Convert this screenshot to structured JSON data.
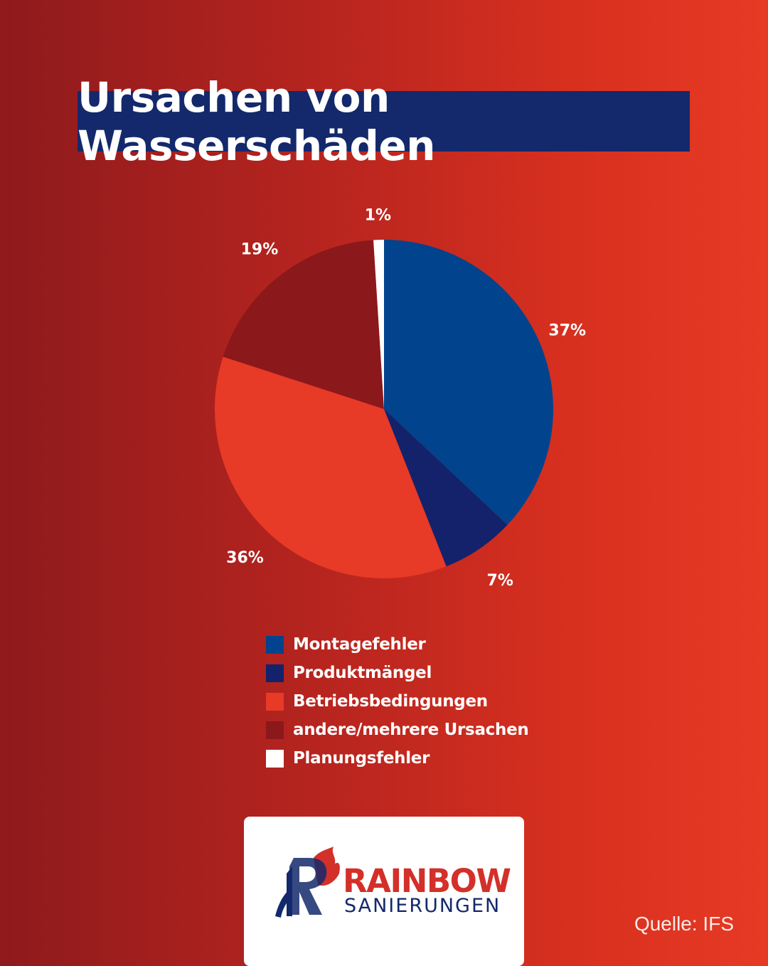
{
  "title": "Ursachen von Wasserschäden",
  "chart_data": {
    "type": "pie",
    "categories": [
      "Montagefehler",
      "Produktmängel",
      "Betriebsbedingungen",
      "andere/mehrere Ursachen",
      "Planungsfehler"
    ],
    "values": [
      37,
      7,
      36,
      19,
      1
    ],
    "labels": [
      "37%",
      "7%",
      "36%",
      "19%",
      "1%"
    ],
    "colors": [
      "#02438d",
      "#13226a",
      "#e73a27",
      "#8b181b",
      "#ffffff"
    ],
    "legend_position": "bottom",
    "start": "12 o'clock, clockwise"
  },
  "logo": {
    "word1": "RAINBOW",
    "word2": "SANIERUNGEN",
    "letter": "R"
  },
  "source": "Quelle: IFS"
}
